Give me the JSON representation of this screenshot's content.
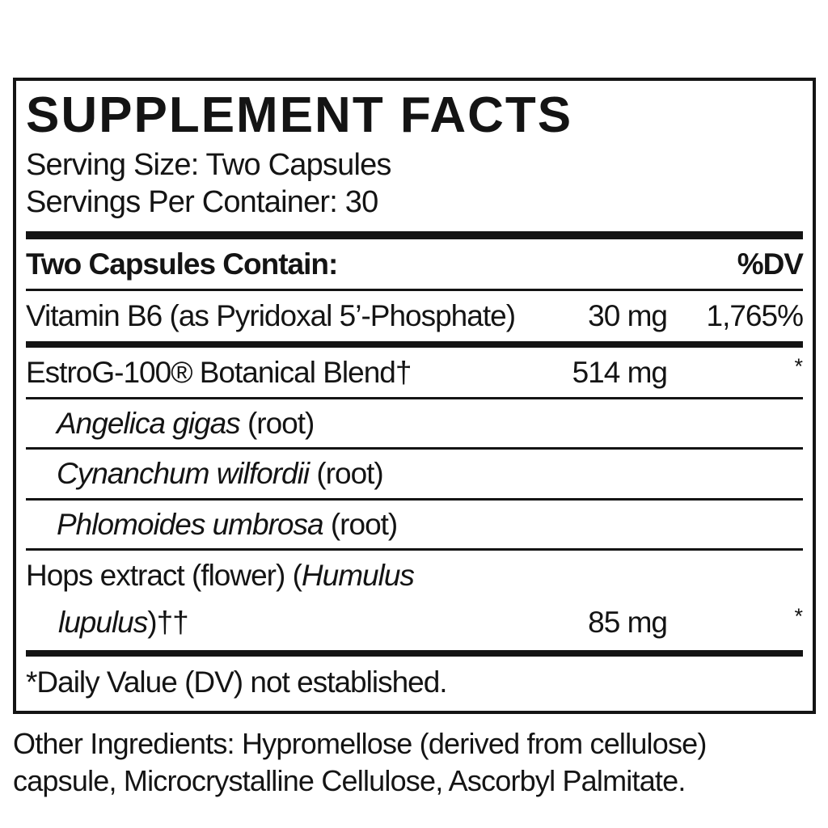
{
  "colors": {
    "ink": "#141414",
    "background": "#ffffff"
  },
  "panel": {
    "title": "SUPPLEMENT FACTS",
    "serving_size": "Serving Size: Two Capsules",
    "servings_per_container": "Servings Per Container: 30",
    "table_header": {
      "left": "Two Capsules Contain:",
      "right": "%DV"
    },
    "rows": {
      "vitamin_b6": {
        "name": "Vitamin B6 (as Pyridoxal 5’-Phosphate)",
        "amount": "30 mg",
        "dv": "1,765%"
      },
      "estrog_blend": {
        "name": "EstroG-100® Botanical Blend†",
        "amount": "514 mg",
        "dv": "*"
      },
      "botanical_1": {
        "species": "Angelica gigas",
        "part": " (root)"
      },
      "botanical_2": {
        "species": "Cynanchum wilfordii",
        "part": " (root)"
      },
      "botanical_3": {
        "species": "Phlomoides umbrosa",
        "part": " (root)"
      },
      "hops": {
        "line1_regular": "Hops extract (flower) (",
        "line1_italic": "Humulus",
        "line2_italic": "lupulus",
        "line2_suffix": ")††",
        "amount": "85 mg",
        "dv": "*"
      }
    },
    "footnote": "*Daily Value (DV) not established."
  },
  "other_ingredients": {
    "line1": "Other Ingredients: Hypromellose (derived from cellulose)",
    "line2": "capsule, Microcrystalline Cellulose, Ascorbyl Palmitate."
  }
}
